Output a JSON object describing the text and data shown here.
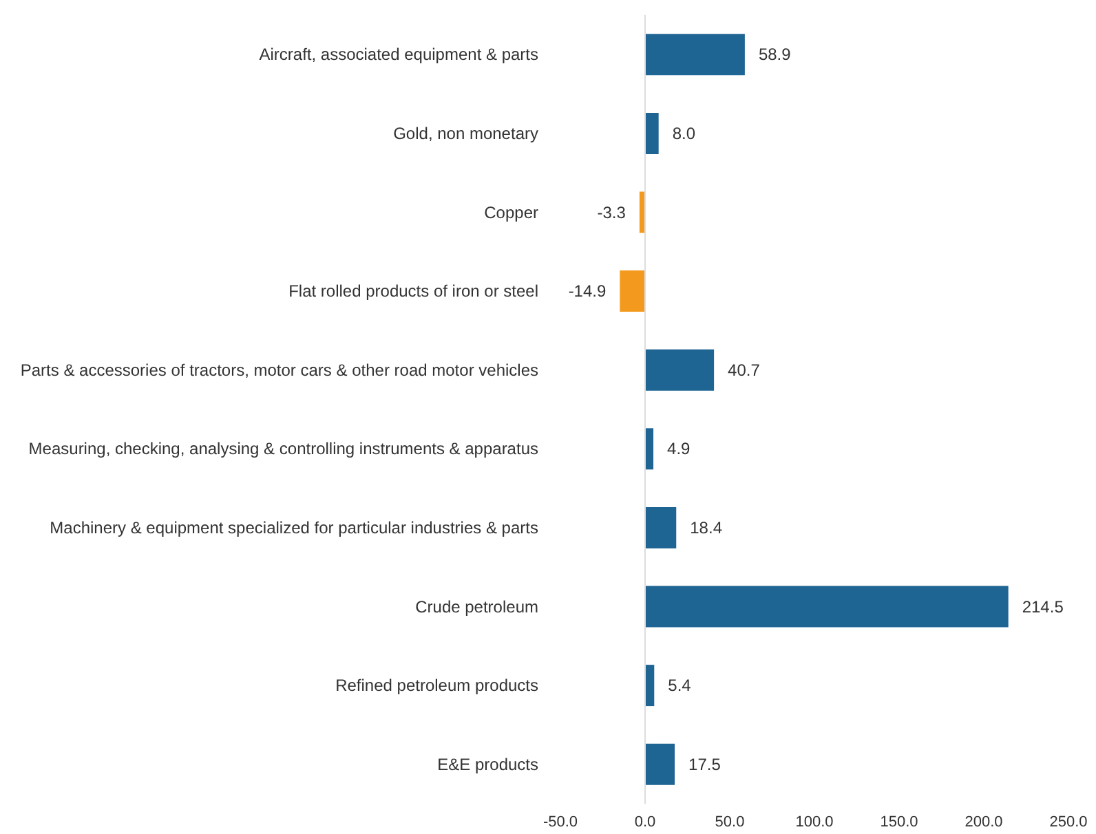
{
  "chart_data": {
    "type": "bar",
    "orientation": "horizontal",
    "categories": [
      "Aircraft, associated equipment & parts",
      "Gold, non monetary",
      "Copper",
      "Flat rolled products of iron or steel",
      "Parts & accessories of tractors, motor cars & other road motor vehicles",
      "Measuring, checking, analysing & controlling instruments & apparatus",
      "Machinery & equipment specialized for particular industries & parts",
      "Crude petroleum",
      "Refined petroleum products",
      "E&E products"
    ],
    "values": [
      58.9,
      8.0,
      -3.3,
      -14.9,
      40.7,
      4.9,
      18.4,
      214.5,
      5.4,
      17.5
    ],
    "value_labels": [
      "58.9",
      "8.0",
      "-3.3",
      "-14.9",
      "40.7",
      "4.9",
      "18.4",
      "214.5",
      "5.4",
      "17.5"
    ],
    "colors": [
      "#1f6594",
      "#1f6594",
      "#f39a1e",
      "#f39a1e",
      "#1f6594",
      "#1f6594",
      "#1f6594",
      "#1f6594",
      "#1f6594",
      "#1f6594"
    ],
    "xlim": [
      -50,
      250
    ],
    "xticks": [
      {
        "value": -50,
        "label": "-50.0"
      },
      {
        "value": 0,
        "label": "0.0"
      },
      {
        "value": 50,
        "label": "50.0"
      },
      {
        "value": 100,
        "label": "100.0"
      },
      {
        "value": 150,
        "label": "150.0"
      },
      {
        "value": 200,
        "label": "200.0"
      },
      {
        "value": 250,
        "label": "250.0"
      }
    ],
    "ref_lines": [
      {
        "axis": "x",
        "value": 0,
        "color": "#dddddd"
      }
    ],
    "grid": false
  }
}
